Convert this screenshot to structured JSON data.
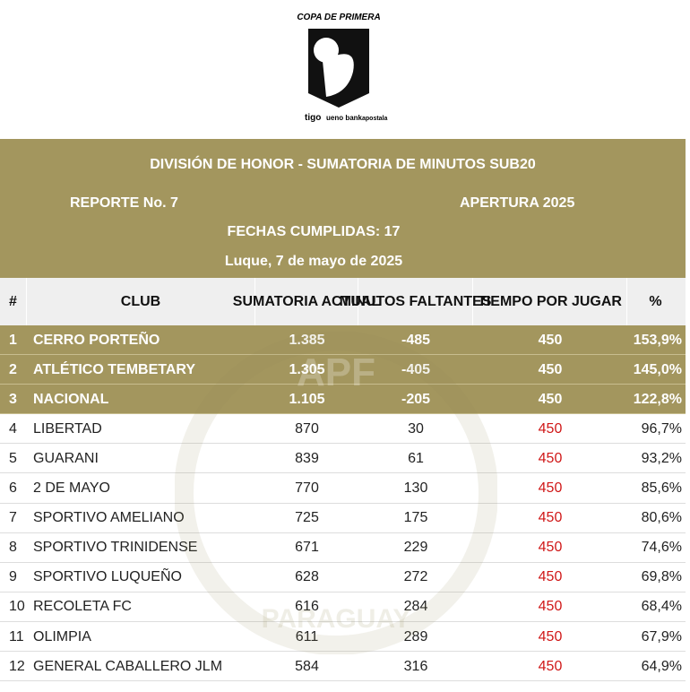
{
  "logo": {
    "title": "COPA DE PRIMERA",
    "sponsors": [
      "tigo",
      "ueno bank",
      "apostala"
    ]
  },
  "header": {
    "title": "DIVISIÓN DE HONOR - SUMATORIA DE MINUTOS SUB20",
    "report": "REPORTE No. 7",
    "season": "APERTURA 2025",
    "matchdays": "FECHAS CUMPLIDAS: 17",
    "place_date": "Luque, 7 de mayo de 2025"
  },
  "watermark": {
    "top": "APF",
    "bottom": "PARAGUAY"
  },
  "table": {
    "columns": [
      "#",
      "CLUB",
      "SUMATORIA ACTUAL",
      "MINUTOS FALTANTES",
      "TIEMPO POR JUGAR",
      "%"
    ],
    "rows": [
      [
        "1",
        "CERRO PORTEÑO",
        "1.385",
        "-485",
        "450",
        "153,9%"
      ],
      [
        "2",
        "ATLÉTICO TEMBETARY",
        "1.305",
        "-405",
        "450",
        "145,0%"
      ],
      [
        "3",
        "NACIONAL",
        "1.105",
        "-205",
        "450",
        "122,8%"
      ],
      [
        "4",
        "LIBERTAD",
        "870",
        "30",
        "450",
        "96,7%"
      ],
      [
        "5",
        "GUARANI",
        "839",
        "61",
        "450",
        "93,2%"
      ],
      [
        "6",
        "2 DE MAYO",
        "770",
        "130",
        "450",
        "85,6%"
      ],
      [
        "7",
        "SPORTIVO AMELIANO",
        "725",
        "175",
        "450",
        "80,6%"
      ],
      [
        "8",
        "SPORTIVO TRINIDENSE",
        "671",
        "229",
        "450",
        "74,6%"
      ],
      [
        "9",
        "SPORTIVO LUQUEÑO",
        "628",
        "272",
        "450",
        "69,8%"
      ],
      [
        "10",
        "RECOLETA FC",
        "616",
        "284",
        "450",
        "68,4%"
      ],
      [
        "11",
        "OLIMPIA",
        "611",
        "289",
        "450",
        "67,9%"
      ],
      [
        "12",
        "GENERAL CABALLERO JLM",
        "584",
        "316",
        "450",
        "64,9%"
      ]
    ]
  }
}
